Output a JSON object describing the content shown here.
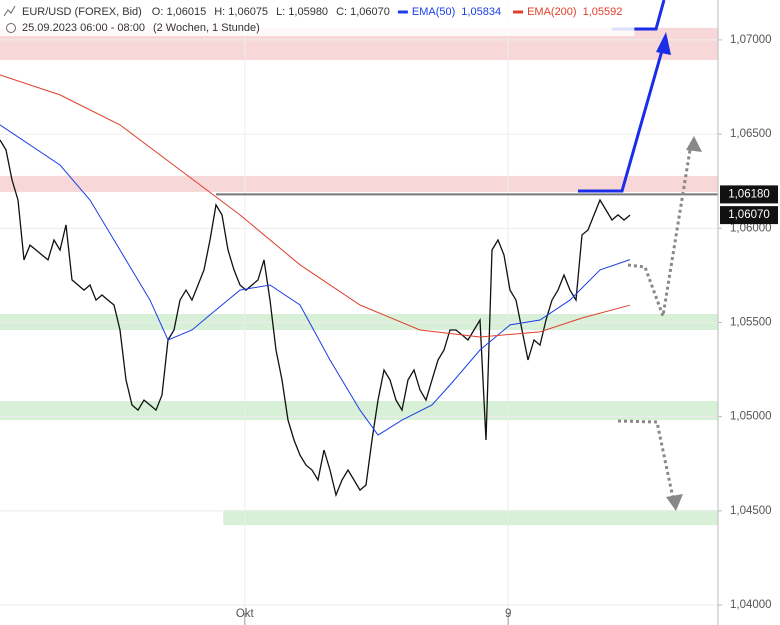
{
  "chart_data": {
    "type": "line",
    "title": "EUR/USD (FOREX, Bid)",
    "ohlc": [
      "O: 1,06015",
      "H: 1,06075",
      "L: 1,05980",
      "C: 1,06070"
    ],
    "subtitle": "25.09.2023 06:00 - 08:00",
    "period": "(2 Wochen, 1 Stunde)",
    "xlim": [
      0,
      130
    ],
    "ylim": [
      1.03894,
      1.07212
    ],
    "xticks": [
      {
        "value": 40.8,
        "label": "Okt"
      },
      {
        "value": 84.7,
        "label": "9"
      }
    ],
    "yticks": [
      {
        "value": 1.04,
        "label": "1,04000"
      },
      {
        "value": 1.045,
        "label": "1,04500"
      },
      {
        "value": 1.05,
        "label": "1,05000"
      },
      {
        "value": 1.055,
        "label": "1,05500"
      },
      {
        "value": 1.06,
        "label": "1,06000"
      },
      {
        "value": 1.065,
        "label": "1,06500"
      },
      {
        "value": 1.07,
        "label": "1,07000"
      }
    ],
    "grid": true,
    "x": [
      0,
      1,
      2,
      3,
      4,
      5,
      6,
      7,
      8,
      9,
      10,
      11,
      12,
      13,
      14,
      15,
      16,
      17,
      18,
      19,
      20,
      21,
      22,
      23,
      24,
      25,
      26,
      27,
      28,
      29,
      30,
      31,
      32,
      33,
      34,
      35,
      36,
      37,
      38,
      39,
      40,
      41,
      42,
      43,
      44,
      45,
      46,
      47,
      48,
      49,
      50,
      51,
      52,
      53,
      54,
      55,
      56,
      57,
      58,
      59,
      60,
      61,
      62,
      63,
      64,
      65,
      66,
      67,
      68,
      69,
      70,
      71,
      72,
      73,
      74,
      75,
      76,
      77,
      78,
      79,
      80,
      81,
      82,
      83,
      84,
      85,
      86,
      87,
      88,
      89,
      90,
      91,
      92,
      93,
      94,
      95,
      96,
      97,
      98,
      99,
      100,
      101,
      102,
      103,
      104,
      105
    ],
    "series": [
      {
        "color": "#111111",
        "values": [
          1.06469,
          1.06416,
          1.06257,
          1.0615,
          1.05832,
          1.05911,
          1.05885,
          1.05858,
          1.05832,
          1.05938,
          1.05885,
          1.06018,
          1.05726,
          1.05699,
          1.05672,
          1.05699,
          1.05619,
          1.05646,
          1.05619,
          1.05593,
          1.0546,
          1.05195,
          1.05062,
          1.05035,
          1.05088,
          1.05062,
          1.05035,
          1.05115,
          1.05407,
          1.0546,
          1.05619,
          1.05672,
          1.05619,
          1.05699,
          1.05779,
          1.05938,
          1.06124,
          1.06071,
          1.05885,
          1.05779,
          1.05699,
          1.05672,
          1.05699,
          1.05726,
          1.05832,
          1.05619,
          1.05354,
          1.05195,
          1.04982,
          1.04876,
          1.04796,
          1.04743,
          1.04717,
          1.04664,
          1.04823,
          1.04717,
          1.04584,
          1.04664,
          1.04717,
          1.04664,
          1.0461,
          1.04637,
          1.04876,
          1.05088,
          1.05248,
          1.05195,
          1.05088,
          1.05035,
          1.05195,
          1.05248,
          1.05142,
          1.05088,
          1.05195,
          1.05301,
          1.05354,
          1.0546,
          1.0546,
          1.05434,
          1.05407,
          1.0546,
          1.05513,
          1.04876,
          1.05885,
          1.05938,
          1.05858,
          1.05672,
          1.05619,
          1.0546,
          1.05301,
          1.05407,
          1.0538,
          1.05513,
          1.05619,
          1.05672,
          1.05752,
          1.05672,
          1.05619,
          1.05965,
          1.05991,
          1.06071,
          1.0615,
          1.06097,
          1.06044,
          1.06071,
          1.06044,
          1.0607
        ]
      },
      {
        "name": "EMA(50)",
        "value_label": "1,05834",
        "color": "#1a3ee8",
        "x": [
          0,
          10,
          15,
          20,
          25,
          28,
          32,
          35,
          40,
          45,
          50,
          55,
          60,
          63,
          67,
          72,
          75,
          80,
          85,
          90,
          95,
          100,
          105
        ],
        "values": [
          1.06549,
          1.06336,
          1.0615,
          1.05885,
          1.05619,
          1.05407,
          1.0546,
          1.0554,
          1.05672,
          1.05699,
          1.05593,
          1.05301,
          1.05035,
          1.04902,
          1.04982,
          1.05062,
          1.05168,
          1.05354,
          1.05487,
          1.05513,
          1.05619,
          1.05779,
          1.05834
        ]
      },
      {
        "name": "EMA(200)",
        "value_label": "1,05592",
        "color": "#e0402a",
        "x": [
          0,
          10,
          20,
          30,
          40,
          50,
          60,
          70,
          80,
          90,
          97,
          105
        ],
        "values": [
          1.06814,
          1.06708,
          1.06549,
          1.0631,
          1.06071,
          1.05806,
          1.05593,
          1.0546,
          1.05423,
          1.0545,
          1.05524,
          1.05592
        ]
      }
    ],
    "zones": [
      {
        "color": "#f6d3d3",
        "range": [
          1.06894,
          1.07064
        ],
        "x_from": 0
      },
      {
        "color": "#f6d3d3",
        "range": [
          1.06193,
          1.06278
        ],
        "x_from": 0
      },
      {
        "color": "#d3eed3",
        "range": [
          1.0546,
          1.05545
        ],
        "x_from": 0
      },
      {
        "color": "#d3eed3",
        "range": [
          1.04982,
          1.05083
        ],
        "x_from": 0
      },
      {
        "color": "#d3eed3",
        "range": [
          1.04424,
          1.04504
        ],
        "x_from": 37.2
      }
    ],
    "price_labels": [
      {
        "value": 1.0618,
        "label": "1,06180",
        "line_from": 36
      },
      {
        "value": 1.0607,
        "label": "1,06070"
      }
    ]
  }
}
